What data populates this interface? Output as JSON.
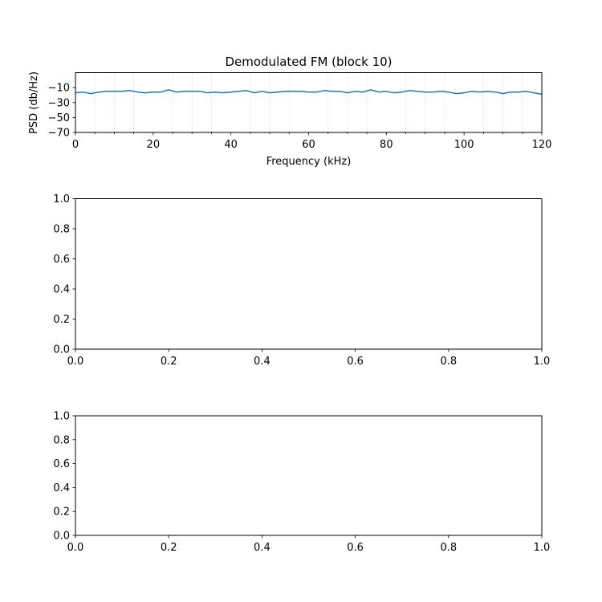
{
  "chart_data": [
    {
      "type": "line",
      "title": "Demodulated FM (block 10)",
      "xlabel": "Frequency (kHz)",
      "ylabel": "PSD (db/Hz)",
      "xlim": [
        0,
        120
      ],
      "ylim": [
        -70,
        10
      ],
      "xticks": [
        0,
        20,
        40,
        60,
        80,
        100,
        120
      ],
      "xtick_labels": [
        "0",
        "20",
        "40",
        "60",
        "80",
        "100",
        "120"
      ],
      "yticks": [
        -10,
        -30,
        -50,
        -70
      ],
      "ytick_labels": [
        "−10",
        "−30",
        "−50",
        "−70"
      ],
      "minor_xticks": [
        5,
        10,
        15,
        25,
        30,
        35,
        45,
        50,
        55,
        65,
        70,
        75,
        85,
        90,
        95,
        105,
        110,
        115
      ],
      "grid": "vertical dashed at 5 kHz steps",
      "line_color": "#1f77b4",
      "series": [
        {
          "x": [
            0,
            2,
            4,
            6,
            8,
            10,
            12,
            14,
            16,
            18,
            20,
            22,
            24,
            26,
            28,
            30,
            32,
            34,
            36,
            38,
            40,
            42,
            44,
            46,
            48,
            50,
            52,
            54,
            56,
            58,
            60,
            62,
            64,
            66,
            68,
            70,
            72,
            74,
            76,
            78,
            80,
            82,
            84,
            86,
            88,
            90,
            92,
            94,
            96,
            98,
            100,
            102,
            104,
            106,
            108,
            110,
            112,
            114,
            116,
            118,
            120
          ],
          "values": [
            -17,
            -16,
            -18,
            -16,
            -15,
            -15,
            -15,
            -14,
            -16,
            -17,
            -16,
            -16,
            -13,
            -16,
            -15,
            -15,
            -15,
            -17,
            -16,
            -17,
            -16,
            -15,
            -14,
            -17,
            -15,
            -17,
            -16,
            -15,
            -15,
            -15,
            -16,
            -16,
            -14,
            -15,
            -15,
            -17,
            -15,
            -16,
            -13,
            -16,
            -15,
            -17,
            -16,
            -14,
            -15,
            -16,
            -16,
            -15,
            -16,
            -18,
            -17,
            -15,
            -16,
            -15,
            -16,
            -18,
            -16,
            -16,
            -15,
            -17,
            -19
          ]
        }
      ]
    },
    {
      "type": "line",
      "title": "",
      "xlabel": "",
      "ylabel": "",
      "xlim": [
        0,
        1
      ],
      "ylim": [
        0,
        1
      ],
      "xticks": [
        0,
        0.2,
        0.4,
        0.6,
        0.8,
        1
      ],
      "xtick_labels": [
        "0.0",
        "0.2",
        "0.4",
        "0.6",
        "0.8",
        "1.0"
      ],
      "yticks": [
        0,
        0.2,
        0.4,
        0.6,
        0.8,
        1
      ],
      "ytick_labels": [
        "0.0",
        "0.2",
        "0.4",
        "0.6",
        "0.8",
        "1.0"
      ],
      "series": []
    },
    {
      "type": "line",
      "title": "",
      "xlabel": "",
      "ylabel": "",
      "xlim": [
        0,
        1
      ],
      "ylim": [
        0,
        1
      ],
      "xticks": [
        0,
        0.2,
        0.4,
        0.6,
        0.8,
        1
      ],
      "xtick_labels": [
        "0.0",
        "0.2",
        "0.4",
        "0.6",
        "0.8",
        "1.0"
      ],
      "yticks": [
        0,
        0.2,
        0.4,
        0.6,
        0.8,
        1
      ],
      "ytick_labels": [
        "0.0",
        "0.2",
        "0.4",
        "0.6",
        "0.8",
        "1.0"
      ],
      "series": []
    }
  ]
}
